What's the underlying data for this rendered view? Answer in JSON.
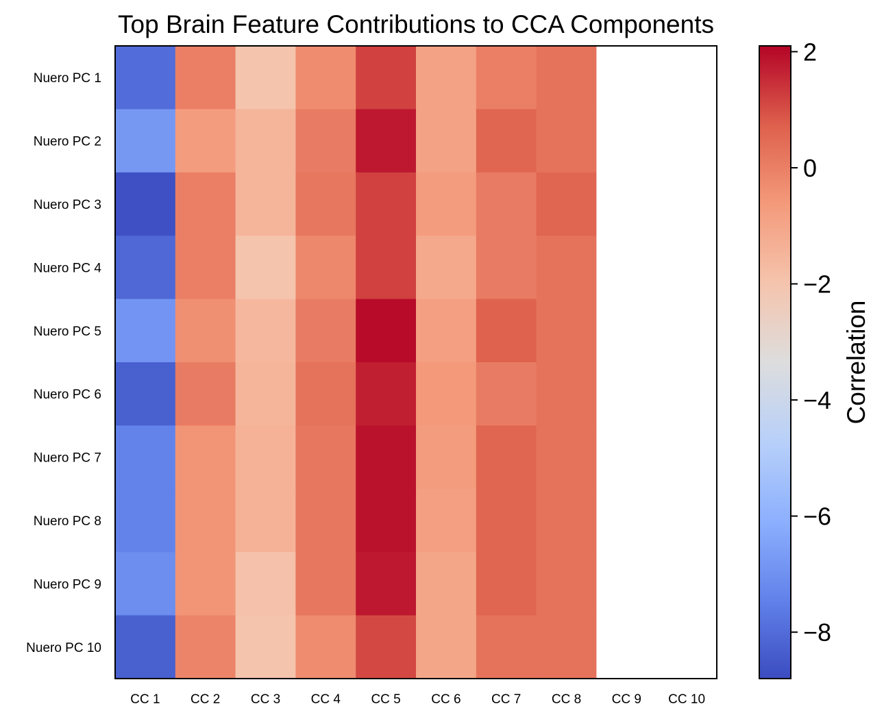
{
  "chart_data": {
    "type": "heatmap",
    "title": "Top Brain Feature Contributions to CCA Components",
    "rows": [
      "Nuero PC 1",
      "Nuero PC 2",
      "Nuero PC 3",
      "Nuero PC 4",
      "Nuero PC 5",
      "Nuero PC 6",
      "Nuero PC 7",
      "Nuero PC 8",
      "Nuero PC 9",
      "Nuero PC 10"
    ],
    "columns": [
      "CC 1",
      "CC 2",
      "CC 3",
      "CC 4",
      "CC 5",
      "CC 6",
      "CC 7",
      "CC 8",
      "CC 9",
      "CC 10"
    ],
    "values": [
      [
        -8.0,
        0.0,
        -2.0,
        -0.3,
        1.2,
        -0.9,
        0.0,
        0.3,
        null,
        null
      ],
      [
        -6.8,
        -0.7,
        -1.5,
        0.1,
        1.8,
        -0.9,
        0.6,
        0.3,
        null,
        null
      ],
      [
        -8.7,
        0.0,
        -1.5,
        0.2,
        1.2,
        -0.7,
        0.1,
        0.6,
        null,
        null
      ],
      [
        -8.1,
        0.0,
        -2.0,
        -0.2,
        1.2,
        -1.1,
        0.1,
        0.3,
        null,
        null
      ],
      [
        -6.9,
        -0.4,
        -1.6,
        0.1,
        2.0,
        -0.8,
        0.7,
        0.3,
        null,
        null
      ],
      [
        -8.3,
        0.1,
        -1.5,
        0.3,
        1.7,
        -0.6,
        0.1,
        0.3,
        null,
        null
      ],
      [
        -7.4,
        -0.5,
        -1.4,
        0.2,
        1.9,
        -0.7,
        0.6,
        0.3,
        null,
        null
      ],
      [
        -7.4,
        -0.5,
        -1.4,
        0.2,
        1.9,
        -0.8,
        0.6,
        0.3,
        null,
        null
      ],
      [
        -7.1,
        -0.5,
        -1.9,
        0.2,
        1.8,
        -1.0,
        0.6,
        0.3,
        null,
        null
      ],
      [
        -8.3,
        -0.1,
        -2.0,
        -0.3,
        1.1,
        -1.0,
        0.3,
        0.3,
        null,
        null
      ]
    ],
    "colormap": "coolwarm",
    "vmin": -8.8,
    "vmax": 2.1,
    "colorbar": {
      "label": "Correlation",
      "ticks": [
        2,
        0,
        -2,
        -4,
        -6,
        -8
      ]
    },
    "grid": false
  }
}
